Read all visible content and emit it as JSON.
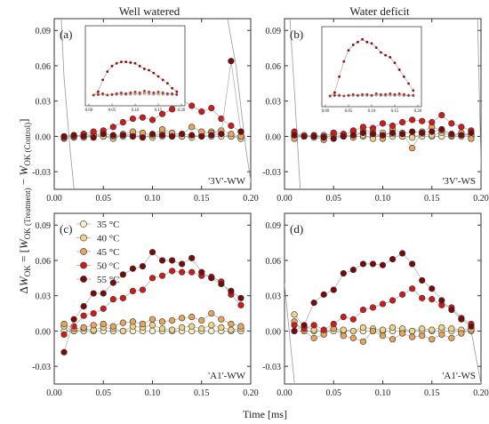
{
  "figure": {
    "col_titles": [
      "Well watered",
      "Water deficit"
    ],
    "xlabel": "Time [ms]",
    "ylabel": {
      "main": "ΔW",
      "sub1": "OK",
      "mid": " = [W",
      "sub2": "OK (Treatment)",
      "minus": " − W",
      "sub3": "OK (Control)",
      "end": "]"
    }
  },
  "legend": {
    "entries": [
      "35 °C",
      "40 °C",
      "45 °C",
      "50 °C",
      "55 °C"
    ],
    "colors": [
      "#f7f0c6",
      "#f0d483",
      "#e8a35d",
      "#d31a1a",
      "#7a0a0a"
    ]
  },
  "chart_data": [
    {
      "type": "scatter",
      "panel_letter": "(a)",
      "sample_label": "'3V'-WW",
      "xlim": [
        0,
        0.2
      ],
      "ylim": [
        -0.045,
        0.1
      ],
      "xticks": [
        "0.00",
        "0.05",
        "0.10",
        "0.15",
        "0.20"
      ],
      "yticks": [
        "0.09",
        "0.06",
        "0.03",
        "0.00",
        "-0.03"
      ],
      "x": [
        0.01,
        0.02,
        0.03,
        0.04,
        0.05,
        0.06,
        0.07,
        0.08,
        0.09,
        0.1,
        0.11,
        0.12,
        0.13,
        0.14,
        0.15,
        0.16,
        0.17,
        0.18,
        0.19
      ],
      "series": [
        {
          "values": [
            0.0,
            0.0,
            0.0,
            0.0,
            0.0,
            0.0,
            0.0,
            0.0,
            0.0,
            0.0,
            0.0,
            0.0,
            0.0,
            0.0,
            0.0,
            0.0,
            0.0,
            0.0,
            0.0
          ]
        },
        {
          "values": [
            0.0,
            0.001,
            -0.001,
            0.002,
            0.0,
            -0.002,
            0.001,
            0.002,
            0.0,
            -0.001,
            0.003,
            0.002,
            0.0,
            -0.001,
            0.001,
            0.004,
            0.002,
            0.0,
            -0.002
          ]
        },
        {
          "values": [
            -0.002,
            -0.001,
            0.002,
            0.001,
            0.003,
            0.0,
            0.002,
            0.004,
            0.003,
            0.001,
            0.006,
            0.003,
            0.002,
            0.008,
            0.004,
            0.003,
            0.005,
            0.002,
            0.0
          ]
        },
        {
          "values": [
            -0.001,
            0.0,
            0.002,
            0.004,
            0.005,
            0.008,
            0.012,
            0.015,
            0.016,
            0.014,
            0.019,
            0.023,
            0.031,
            0.026,
            0.021,
            0.024,
            0.015,
            0.009,
            0.004
          ]
        },
        {
          "values": [
            0.0,
            0.001,
            0.0,
            -0.001,
            0.002,
            0.001,
            0.001,
            0.0,
            -0.001,
            0.002,
            0.001,
            0.0,
            0.002,
            0.001,
            0.0,
            0.001,
            0.002,
            0.064,
            0.004
          ]
        }
      ],
      "inset": {
        "xticks": [
          "0.00",
          "0.05",
          "0.10",
          "0.15",
          "0.20"
        ],
        "yticks": [],
        "main": [
          0.0,
          0.05,
          0.22,
          0.34,
          0.42,
          0.46,
          0.48,
          0.48,
          0.47,
          0.46,
          0.42,
          0.38,
          0.36,
          0.32,
          0.27,
          0.22,
          0.17,
          0.1,
          0.05
        ],
        "flat": [
          0.0,
          0.01,
          0.02,
          0.0,
          0.01,
          0.02,
          0.03,
          0.02,
          0.03,
          0.04,
          0.03,
          0.05,
          0.04,
          0.03,
          0.04,
          0.03,
          0.02,
          0.02,
          0.01
        ]
      }
    },
    {
      "type": "scatter",
      "panel_letter": "(b)",
      "sample_label": "'3V'-WS",
      "xlim": [
        0,
        0.2
      ],
      "ylim": [
        -0.045,
        0.1
      ],
      "xticks": [
        "0.00",
        "0.05",
        "0.10",
        "0.15",
        "0.20"
      ],
      "yticks": [
        "0.09",
        "0.06",
        "0.03",
        "0.00",
        "-0.03"
      ],
      "x": [
        0.01,
        0.02,
        0.03,
        0.04,
        0.05,
        0.06,
        0.07,
        0.08,
        0.09,
        0.1,
        0.11,
        0.12,
        0.13,
        0.14,
        0.15,
        0.16,
        0.17,
        0.18,
        0.19
      ],
      "series": [
        {
          "values": [
            0.0,
            0.0,
            0.0,
            0.0,
            0.0,
            0.0,
            0.0,
            0.0,
            0.0,
            0.0,
            0.0,
            0.0,
            0.0,
            0.0,
            0.0,
            0.0,
            0.0,
            0.0,
            0.0
          ]
        },
        {
          "values": [
            0.002,
            0.0,
            -0.001,
            0.001,
            0.002,
            0.0,
            0.004,
            0.001,
            -0.002,
            0.003,
            0.002,
            0.0,
            -0.001,
            0.002,
            0.001,
            0.003,
            0.0,
            0.002,
            0.001
          ]
        },
        {
          "values": [
            -0.002,
            0.001,
            0.0,
            -0.003,
            0.003,
            0.002,
            -0.001,
            0.005,
            0.004,
            -0.002,
            0.006,
            0.003,
            -0.01,
            0.004,
            0.008,
            0.005,
            0.001,
            0.003,
            -0.002
          ]
        },
        {
          "values": [
            0.004,
            0.0,
            0.001,
            0.0,
            0.003,
            0.002,
            0.005,
            0.008,
            0.007,
            0.011,
            0.009,
            0.012,
            0.014,
            0.013,
            0.012,
            0.018,
            0.011,
            0.008,
            0.005
          ]
        },
        {
          "values": [
            0.001,
            0.0,
            0.0,
            -0.001,
            -0.002,
            0.0,
            0.001,
            0.003,
            0.002,
            0.001,
            0.003,
            0.002,
            0.004,
            0.003,
            0.004,
            0.006,
            0.002,
            0.001,
            0.003
          ]
        }
      ],
      "inset": {
        "xticks": [
          "0.00",
          "0.05",
          "0.10",
          "0.15",
          "0.20"
        ],
        "yticks": [],
        "main": [
          0.0,
          0.05,
          0.28,
          0.5,
          0.66,
          0.74,
          0.78,
          0.82,
          0.78,
          0.76,
          0.7,
          0.63,
          0.59,
          0.56,
          0.48,
          0.38,
          0.28,
          0.18,
          0.08
        ],
        "flat": [
          0.0,
          0.01,
          0.01,
          0.0,
          0.01,
          0.02,
          0.01,
          0.02,
          0.02,
          0.01,
          0.03,
          0.02,
          0.02,
          0.03,
          0.02,
          0.03,
          0.02,
          0.01,
          0.01
        ]
      }
    },
    {
      "type": "scatter",
      "panel_letter": "(c)",
      "sample_label": "'A1'-WW",
      "xlim": [
        0,
        0.2
      ],
      "ylim": [
        -0.045,
        0.1
      ],
      "xticks": [
        "0.00",
        "0.05",
        "0.10",
        "0.15",
        "0.20"
      ],
      "yticks": [
        "0.09",
        "0.06",
        "0.03",
        "0.00",
        "-0.03"
      ],
      "x": [
        0.01,
        0.02,
        0.03,
        0.04,
        0.05,
        0.06,
        0.07,
        0.08,
        0.09,
        0.1,
        0.11,
        0.12,
        0.13,
        0.14,
        0.15,
        0.16,
        0.17,
        0.18,
        0.19
      ],
      "series": [
        {
          "values": [
            0.0,
            0.0,
            0.0,
            0.0,
            0.0,
            0.0,
            0.0,
            0.0,
            0.0,
            0.0,
            0.0,
            0.0,
            0.0,
            0.0,
            0.0,
            0.0,
            0.0,
            0.0,
            0.0
          ]
        },
        {
          "values": [
            0.004,
            0.0,
            0.002,
            0.001,
            0.003,
            0.002,
            0.0,
            0.004,
            0.003,
            0.005,
            0.002,
            0.001,
            0.003,
            0.004,
            0.002,
            0.005,
            0.003,
            0.001,
            0.002
          ]
        },
        {
          "values": [
            0.006,
            0.002,
            0.003,
            0.005,
            0.006,
            0.004,
            0.007,
            0.008,
            0.006,
            0.01,
            0.008,
            0.009,
            0.011,
            0.012,
            0.009,
            0.015,
            0.01,
            0.006,
            0.004
          ]
        },
        {
          "values": [
            -0.003,
            0.004,
            0.013,
            0.015,
            0.019,
            0.027,
            0.028,
            0.034,
            0.035,
            0.045,
            0.047,
            0.051,
            0.05,
            0.05,
            0.047,
            0.046,
            0.042,
            0.031,
            0.022
          ]
        },
        {
          "values": [
            -0.018,
            0.01,
            0.021,
            0.032,
            0.032,
            0.041,
            0.048,
            0.053,
            0.055,
            0.067,
            0.06,
            0.06,
            0.057,
            0.062,
            0.05,
            0.045,
            0.04,
            0.034,
            0.028
          ]
        }
      ]
    },
    {
      "type": "scatter",
      "panel_letter": "(d)",
      "sample_label": "'A1'-WS",
      "xlim": [
        0,
        0.2
      ],
      "ylim": [
        -0.045,
        0.1
      ],
      "xticks": [
        "0.00",
        "0.05",
        "0.10",
        "0.15",
        "0.20"
      ],
      "yticks": [
        "0.09",
        "0.06",
        "0.03",
        "0.00",
        "-0.03"
      ],
      "x": [
        0.01,
        0.02,
        0.03,
        0.04,
        0.05,
        0.06,
        0.07,
        0.08,
        0.09,
        0.1,
        0.11,
        0.12,
        0.13,
        0.14,
        0.15,
        0.16,
        0.17,
        0.18,
        0.19
      ],
      "series": [
        {
          "values": [
            0.0,
            0.0,
            0.0,
            0.0,
            0.0,
            0.0,
            0.0,
            0.0,
            0.0,
            0.0,
            0.0,
            0.0,
            0.0,
            0.0,
            0.0,
            0.0,
            0.0,
            0.0,
            0.0
          ]
        },
        {
          "values": [
            0.014,
            0.004,
            0.001,
            -0.001,
            0.002,
            0.001,
            0.0,
            0.003,
            0.002,
            0.001,
            0.003,
            0.002,
            0.0,
            0.002,
            0.001,
            0.003,
            0.002,
            0.001,
            0.002
          ]
        },
        {
          "values": [
            0.008,
            0.0,
            -0.006,
            -0.003,
            0.002,
            -0.004,
            -0.006,
            -0.009,
            0.0,
            -0.004,
            -0.007,
            -0.002,
            -0.005,
            -0.004,
            -0.007,
            -0.003,
            -0.006,
            -0.002,
            0.001
          ]
        },
        {
          "values": [
            0.005,
            0.002,
            0.005,
            0.001,
            0.006,
            0.012,
            0.01,
            0.018,
            0.02,
            0.023,
            0.026,
            0.031,
            0.036,
            0.028,
            0.027,
            0.022,
            0.02,
            0.011,
            0.006
          ]
        },
        {
          "values": [
            0.0,
            0.005,
            0.024,
            0.031,
            0.035,
            0.049,
            0.052,
            0.057,
            0.057,
            0.056,
            0.061,
            0.066,
            0.057,
            0.043,
            0.036,
            0.026,
            0.018,
            0.01,
            0.004
          ]
        }
      ]
    }
  ]
}
